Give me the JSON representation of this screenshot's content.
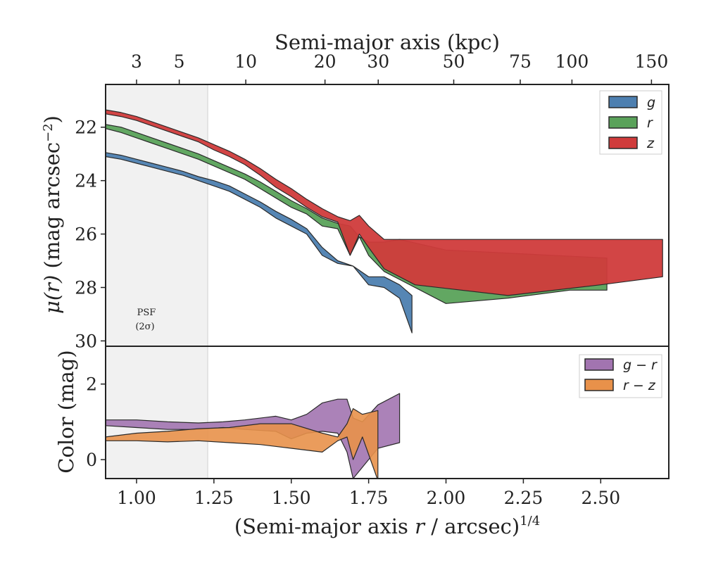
{
  "chart_data": [
    {
      "type": "area",
      "panel": "surface-brightness",
      "ylabel": "μ(r) (mag arcsec⁻²)",
      "ylim": [
        30.2,
        20.4
      ],
      "xlim": [
        0.9,
        2.72
      ],
      "y_inverted": true,
      "yticks": [
        22,
        24,
        26,
        28,
        30
      ],
      "top_xlabel": "Semi-major axis (kpc)",
      "top_xticks": [
        {
          "label": "3",
          "x": 1.0
        },
        {
          "label": "5",
          "x": 1.138
        },
        {
          "label": "10",
          "x": 1.353
        },
        {
          "label": "20",
          "x": 1.609
        },
        {
          "label": "30",
          "x": 1.781
        },
        {
          "label": "50",
          "x": 2.025
        },
        {
          "label": "75",
          "x": 2.24
        },
        {
          "label": "100",
          "x": 2.407
        },
        {
          "label": "150",
          "x": 2.664
        }
      ],
      "psf_label": [
        "PSF",
        "(2σ)"
      ],
      "psf_region": [
        0.9,
        1.23
      ],
      "legend_position": "top-right",
      "series": [
        {
          "name": "g",
          "color": "#4d7fb0",
          "upper": [
            [
              0.9,
              22.95
            ],
            [
              0.95,
              23.05
            ],
            [
              1.0,
              23.2
            ],
            [
              1.05,
              23.35
            ],
            [
              1.1,
              23.5
            ],
            [
              1.15,
              23.65
            ],
            [
              1.2,
              23.85
            ],
            [
              1.25,
              24.0
            ],
            [
              1.3,
              24.2
            ],
            [
              1.35,
              24.5
            ],
            [
              1.4,
              24.8
            ],
            [
              1.45,
              25.15
            ],
            [
              1.5,
              25.45
            ],
            [
              1.55,
              25.8
            ],
            [
              1.6,
              26.5
            ],
            [
              1.65,
              27.0
            ],
            [
              1.7,
              27.2
            ],
            [
              1.75,
              27.6
            ],
            [
              1.8,
              27.6
            ],
            [
              1.85,
              27.9
            ],
            [
              1.89,
              28.3
            ]
          ],
          "lower": [
            [
              0.9,
              23.1
            ],
            [
              0.95,
              23.2
            ],
            [
              1.0,
              23.35
            ],
            [
              1.05,
              23.5
            ],
            [
              1.1,
              23.65
            ],
            [
              1.15,
              23.8
            ],
            [
              1.2,
              24.0
            ],
            [
              1.25,
              24.2
            ],
            [
              1.3,
              24.4
            ],
            [
              1.35,
              24.7
            ],
            [
              1.4,
              25.0
            ],
            [
              1.45,
              25.4
            ],
            [
              1.5,
              25.7
            ],
            [
              1.55,
              26.0
            ],
            [
              1.6,
              26.8
            ],
            [
              1.65,
              27.1
            ],
            [
              1.7,
              27.2
            ],
            [
              1.75,
              27.9
            ],
            [
              1.8,
              28.0
            ],
            [
              1.85,
              28.4
            ],
            [
              1.89,
              29.7
            ]
          ]
        },
        {
          "name": "r",
          "color": "#5aa25a",
          "upper": [
            [
              0.9,
              21.9
            ],
            [
              0.95,
              22.0
            ],
            [
              1.0,
              22.2
            ],
            [
              1.05,
              22.4
            ],
            [
              1.1,
              22.6
            ],
            [
              1.15,
              22.8
            ],
            [
              1.2,
              23.0
            ],
            [
              1.25,
              23.25
            ],
            [
              1.3,
              23.5
            ],
            [
              1.35,
              23.75
            ],
            [
              1.4,
              24.05
            ],
            [
              1.45,
              24.4
            ],
            [
              1.5,
              24.75
            ],
            [
              1.55,
              25.05
            ],
            [
              1.6,
              25.4
            ],
            [
              1.65,
              25.6
            ],
            [
              1.69,
              25.7
            ],
            [
              1.72,
              26.1
            ],
            [
              1.75,
              26.3
            ],
            [
              1.8,
              26.3
            ],
            [
              1.85,
              26.2
            ],
            [
              2.0,
              26.6
            ],
            [
              2.52,
              26.9
            ]
          ],
          "lower": [
            [
              0.9,
              22.05
            ],
            [
              0.95,
              22.2
            ],
            [
              1.0,
              22.4
            ],
            [
              1.05,
              22.6
            ],
            [
              1.1,
              22.8
            ],
            [
              1.15,
              23.0
            ],
            [
              1.2,
              23.2
            ],
            [
              1.25,
              23.45
            ],
            [
              1.3,
              23.7
            ],
            [
              1.35,
              23.95
            ],
            [
              1.4,
              24.3
            ],
            [
              1.45,
              24.65
            ],
            [
              1.5,
              25.0
            ],
            [
              1.55,
              25.25
            ],
            [
              1.6,
              25.7
            ],
            [
              1.65,
              25.8
            ],
            [
              1.69,
              26.8
            ],
            [
              1.72,
              26.1
            ],
            [
              1.75,
              26.8
            ],
            [
              1.8,
              27.4
            ],
            [
              1.85,
              27.7
            ],
            [
              2.0,
              28.6
            ],
            [
              2.2,
              28.4
            ],
            [
              2.4,
              28.1
            ],
            [
              2.52,
              28.1
            ]
          ]
        },
        {
          "name": "z",
          "color": "#d03b3b",
          "upper": [
            [
              0.9,
              21.35
            ],
            [
              0.95,
              21.45
            ],
            [
              1.0,
              21.6
            ],
            [
              1.05,
              21.8
            ],
            [
              1.1,
              22.0
            ],
            [
              1.15,
              22.2
            ],
            [
              1.2,
              22.4
            ],
            [
              1.25,
              22.65
            ],
            [
              1.3,
              22.9
            ],
            [
              1.35,
              23.2
            ],
            [
              1.4,
              23.55
            ],
            [
              1.45,
              23.95
            ],
            [
              1.5,
              24.3
            ],
            [
              1.55,
              24.7
            ],
            [
              1.6,
              25.05
            ],
            [
              1.65,
              25.35
            ],
            [
              1.69,
              25.5
            ],
            [
              1.72,
              25.3
            ],
            [
              1.75,
              25.7
            ],
            [
              1.8,
              26.2
            ],
            [
              1.9,
              26.2
            ],
            [
              2.2,
              26.2
            ],
            [
              2.7,
              26.2
            ]
          ],
          "lower": [
            [
              0.9,
              21.5
            ],
            [
              0.95,
              21.6
            ],
            [
              1.0,
              21.75
            ],
            [
              1.05,
              21.95
            ],
            [
              1.1,
              22.15
            ],
            [
              1.15,
              22.35
            ],
            [
              1.2,
              22.55
            ],
            [
              1.25,
              22.85
            ],
            [
              1.3,
              23.1
            ],
            [
              1.35,
              23.4
            ],
            [
              1.4,
              23.8
            ],
            [
              1.45,
              24.25
            ],
            [
              1.5,
              24.6
            ],
            [
              1.55,
              25.0
            ],
            [
              1.6,
              25.35
            ],
            [
              1.65,
              25.55
            ],
            [
              1.69,
              26.8
            ],
            [
              1.72,
              26.0
            ],
            [
              1.75,
              26.5
            ],
            [
              1.8,
              27.3
            ],
            [
              1.9,
              27.9
            ],
            [
              2.2,
              28.3
            ],
            [
              2.5,
              27.9
            ],
            [
              2.7,
              27.6
            ]
          ]
        }
      ]
    },
    {
      "type": "area",
      "panel": "color",
      "ylabel": "Color (mag)",
      "xlabel": "(Semi-major axis r / arcsec)^{1/4}",
      "xlabel_parts": {
        "before": "(Semi-major axis ",
        "var": "r",
        "after": " / arcsec)",
        "sup": "1/4"
      },
      "xlim": [
        0.9,
        2.72
      ],
      "ylim": [
        -0.5,
        3.0
      ],
      "yticks": [
        0,
        2
      ],
      "xticks": [
        "1.00",
        "1.25",
        "1.50",
        "1.75",
        "2.00",
        "2.25",
        "2.50"
      ],
      "xtick_values": [
        1.0,
        1.25,
        1.5,
        1.75,
        2.0,
        2.25,
        2.5
      ],
      "legend_position": "top-right",
      "series": [
        {
          "name": "g − r",
          "color": "#a274b0",
          "upper": [
            [
              0.9,
              1.05
            ],
            [
              1.0,
              1.05
            ],
            [
              1.1,
              1.0
            ],
            [
              1.2,
              0.97
            ],
            [
              1.28,
              1.0
            ],
            [
              1.35,
              1.05
            ],
            [
              1.45,
              1.15
            ],
            [
              1.5,
              1.05
            ],
            [
              1.55,
              1.2
            ],
            [
              1.6,
              1.5
            ],
            [
              1.65,
              1.6
            ],
            [
              1.68,
              1.6
            ],
            [
              1.7,
              1.1
            ],
            [
              1.73,
              1.0
            ],
            [
              1.78,
              1.45
            ],
            [
              1.85,
              1.75
            ]
          ],
          "lower": [
            [
              0.9,
              0.9
            ],
            [
              1.0,
              0.85
            ],
            [
              1.1,
              0.8
            ],
            [
              1.2,
              0.8
            ],
            [
              1.28,
              0.85
            ],
            [
              1.35,
              0.8
            ],
            [
              1.45,
              0.75
            ],
            [
              1.5,
              0.55
            ],
            [
              1.55,
              0.7
            ],
            [
              1.6,
              0.75
            ],
            [
              1.65,
              0.7
            ],
            [
              1.68,
              0.2
            ],
            [
              1.7,
              -0.5
            ],
            [
              1.73,
              -0.2
            ],
            [
              1.78,
              0.3
            ],
            [
              1.85,
              0.45
            ]
          ]
        },
        {
          "name": "r − z",
          "color": "#e8914a",
          "upper": [
            [
              0.9,
              0.6
            ],
            [
              1.0,
              0.7
            ],
            [
              1.1,
              0.75
            ],
            [
              1.2,
              0.82
            ],
            [
              1.3,
              0.85
            ],
            [
              1.4,
              0.95
            ],
            [
              1.5,
              0.95
            ],
            [
              1.6,
              0.7
            ],
            [
              1.65,
              0.6
            ],
            [
              1.68,
              0.95
            ],
            [
              1.7,
              1.35
            ],
            [
              1.73,
              1.2
            ],
            [
              1.78,
              1.3
            ]
          ],
          "lower": [
            [
              0.9,
              0.5
            ],
            [
              1.0,
              0.5
            ],
            [
              1.1,
              0.47
            ],
            [
              1.2,
              0.5
            ],
            [
              1.3,
              0.45
            ],
            [
              1.4,
              0.4
            ],
            [
              1.5,
              0.3
            ],
            [
              1.6,
              0.2
            ],
            [
              1.65,
              0.5
            ],
            [
              1.68,
              0.6
            ],
            [
              1.7,
              0.0
            ],
            [
              1.73,
              0.6
            ],
            [
              1.78,
              -0.55
            ]
          ]
        }
      ]
    }
  ]
}
